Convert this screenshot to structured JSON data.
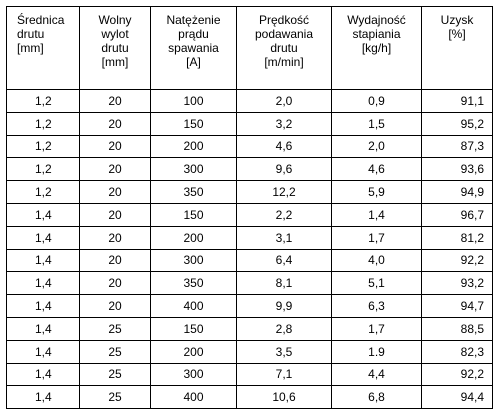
{
  "table": {
    "headers": [
      "Średnica\ndrutu\n[mm]",
      "Wolny\nwylot\ndrutu\n[mm]",
      "Natężenie\nprądu\nspawania\n[A]",
      "Prędkość\npodawania\ndrutu\n[m/min]",
      "Wydajność\nstapiania\n[kg/h]",
      "Uzysk\n[%]"
    ],
    "rows": [
      [
        "1,2",
        "20",
        "100",
        "2,0",
        "0,9",
        "91,1"
      ],
      [
        "1,2",
        "20",
        "150",
        "3,2",
        "1,5",
        "95,2"
      ],
      [
        "1,2",
        "20",
        "200",
        "4,6",
        "2,0",
        "87,3"
      ],
      [
        "1,2",
        "20",
        "300",
        "9,6",
        "4,6",
        "93,6"
      ],
      [
        "1,2",
        "20",
        "350",
        "12,2",
        "5,9",
        "94,9"
      ],
      [
        "1,4",
        "20",
        "150",
        "2,2",
        "1,4",
        "96,7"
      ],
      [
        "1,4",
        "20",
        "200",
        "3,1",
        "1,7",
        "81,2"
      ],
      [
        "1,4",
        "20",
        "300",
        "6,4",
        "4,0",
        "92,2"
      ],
      [
        "1,4",
        "20",
        "350",
        "8,1",
        "5,1",
        "93,2"
      ],
      [
        "1,4",
        "20",
        "400",
        "9,9",
        "6,3",
        "94,7"
      ],
      [
        "1,4",
        "25",
        "150",
        "2,8",
        "1,7",
        "88,5"
      ],
      [
        "1,4",
        "25",
        "200",
        "3,5",
        "1.9",
        "82,3"
      ],
      [
        "1,4",
        "25",
        "300",
        "7,1",
        "4,4",
        "92,2"
      ],
      [
        "1,4",
        "25",
        "400",
        "10,6",
        "6,8",
        "94,4"
      ]
    ]
  }
}
